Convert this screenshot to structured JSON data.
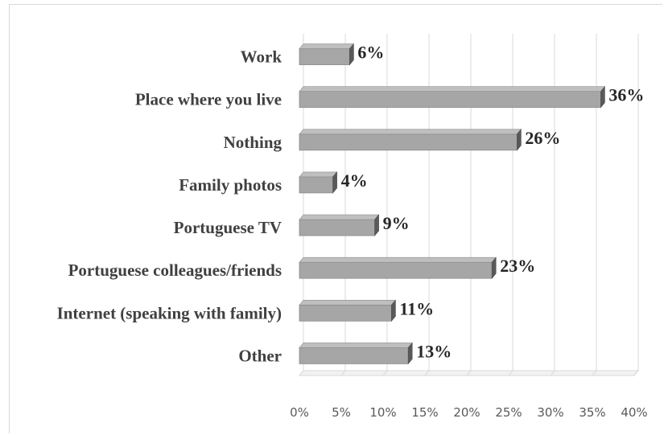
{
  "chart_data": {
    "type": "bar",
    "orientation": "horizontal",
    "style": "3d-bars",
    "categories": [
      "Work",
      "Place where you live",
      "Nothing",
      "Family photos",
      "Portuguese TV",
      "Portuguese colleagues/friends",
      "Internet (speaking with family)",
      "Other"
    ],
    "values": [
      6,
      36,
      26,
      4,
      9,
      23,
      11,
      13
    ],
    "data_labels": [
      "6%",
      "36%",
      "26%",
      "4%",
      "9%",
      "23%",
      "11%",
      "13%"
    ],
    "x_ticks": [
      "0%",
      "5%",
      "10%",
      "15%",
      "20%",
      "25%",
      "30%",
      "35%",
      "40%"
    ],
    "xlim": [
      0,
      40
    ],
    "grid": true,
    "bar_color": "#a6a6a6"
  }
}
